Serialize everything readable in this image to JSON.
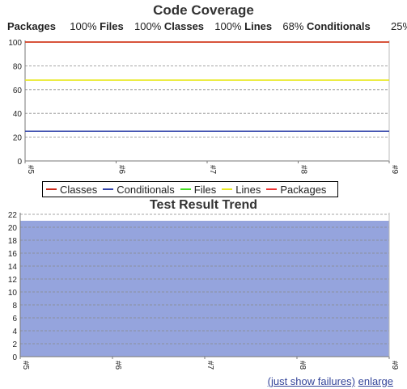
{
  "coverage": {
    "title": "Code Coverage",
    "summary": [
      {
        "label": "Packages",
        "value": "100%"
      },
      {
        "label": "Files",
        "value": "100%"
      },
      {
        "label": "Classes",
        "value": "100%"
      },
      {
        "label": "Lines",
        "value": "68%"
      },
      {
        "label": "Conditionals",
        "value": "25%"
      }
    ]
  },
  "trend": {
    "title": "Test Result Trend"
  },
  "links": {
    "failures": "(just show failures)",
    "enlarge": "enlarge"
  },
  "chart_data": [
    {
      "type": "line",
      "title": "Code Coverage",
      "categories": [
        "#5",
        "#6",
        "#7",
        "#8",
        "#9"
      ],
      "ylim": [
        0,
        100
      ],
      "yticks": [
        0,
        20,
        40,
        60,
        80,
        100
      ],
      "grid": true,
      "legend": "bottom",
      "series": [
        {
          "name": "Classes",
          "color": "#cc2a1a",
          "values": [
            100,
            100,
            100,
            100,
            100
          ]
        },
        {
          "name": "Conditionals",
          "color": "#3344aa",
          "values": [
            25,
            25,
            25,
            25,
            25
          ]
        },
        {
          "name": "Files",
          "color": "#44dd22",
          "values": [
            100,
            100,
            100,
            100,
            100
          ]
        },
        {
          "name": "Lines",
          "color": "#e8e820",
          "values": [
            68,
            68,
            68,
            68,
            68
          ]
        },
        {
          "name": "Packages",
          "color": "#ee3333",
          "values": [
            100,
            100,
            100,
            100,
            100
          ]
        }
      ]
    },
    {
      "type": "area",
      "title": "Test Result Trend",
      "categories": [
        "#5",
        "#6",
        "#7",
        "#8",
        "#9"
      ],
      "ylim": [
        0,
        22
      ],
      "yticks": [
        0,
        2,
        4,
        6,
        8,
        10,
        12,
        14,
        16,
        18,
        20,
        22
      ],
      "grid": true,
      "series": [
        {
          "color": "#95a4dd",
          "values": [
            21,
            21,
            21,
            21,
            21
          ]
        }
      ]
    }
  ]
}
